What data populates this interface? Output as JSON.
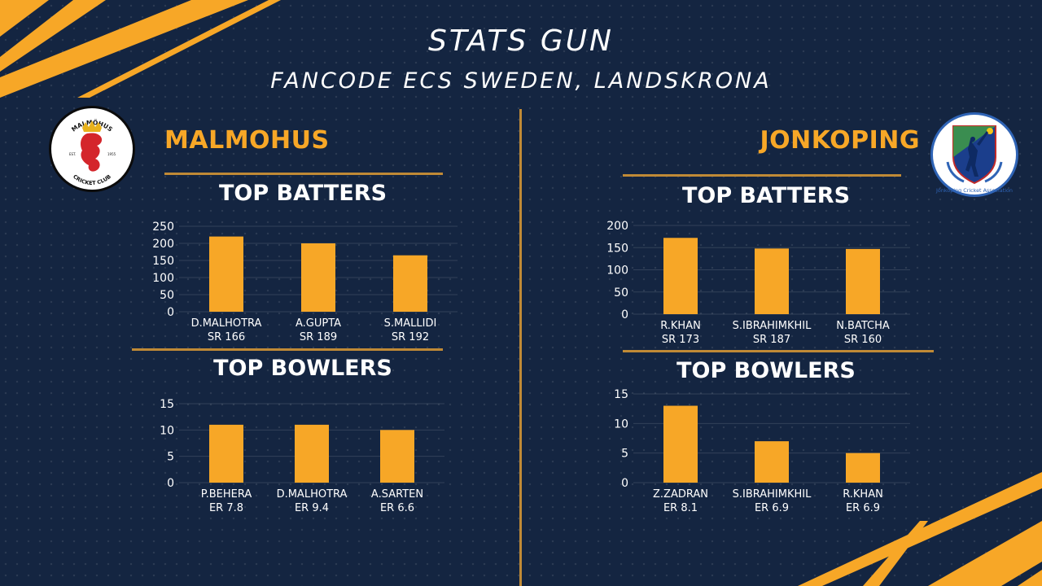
{
  "header": {
    "title": "STATS GUN",
    "subtitle": "FANCODE ECS SWEDEN, LANDSKRONA"
  },
  "colors": {
    "bar": "#f7a727",
    "background": "#142541",
    "accent": "#c08a36",
    "team_name": "#f7a727"
  },
  "teams": {
    "left": {
      "name": "MALMOHUS",
      "logo": {
        "icon": "malmohus-cricket-club-logo",
        "top_text": "MALMÖHUS",
        "bottom_text": "CRICKET CLUB",
        "est": "EST.",
        "year": "1955"
      }
    },
    "right": {
      "name": "JONKOPING",
      "logo": {
        "icon": "jonkoping-cricket-association-logo",
        "text": "Jönköping Cricket Association"
      }
    }
  },
  "sections": {
    "batters": "TOP BATTERS",
    "bowlers": "TOP BOWLERS"
  },
  "chart_data": [
    {
      "type": "bar",
      "team": "MALMOHUS",
      "section": "TOP BATTERS",
      "categories": [
        "D.MALHOTRA",
        "A.GUPTA",
        "S.MALLIDI"
      ],
      "sublabels": [
        "SR 166",
        "SR 189",
        "SR 192"
      ],
      "values": [
        220,
        200,
        165
      ],
      "ylim": [
        0,
        250
      ],
      "yticks": [
        0,
        50,
        100,
        150,
        200,
        250
      ],
      "grid": true
    },
    {
      "type": "bar",
      "team": "MALMOHUS",
      "section": "TOP BOWLERS",
      "categories": [
        "P.BEHERA",
        "D.MALHOTRA",
        "A.SARTEN"
      ],
      "sublabels": [
        "ER 7.8",
        "ER 9.4",
        "ER 6.6"
      ],
      "values": [
        11,
        11,
        10
      ],
      "ylim": [
        0,
        15
      ],
      "yticks": [
        0,
        5,
        10,
        15
      ],
      "grid": true
    },
    {
      "type": "bar",
      "team": "JONKOPING",
      "section": "TOP BATTERS",
      "categories": [
        "R.KHAN",
        "S.IBRAHIMKHIL",
        "N.BATCHA"
      ],
      "sublabels": [
        "SR 173",
        "SR 187",
        "SR 160"
      ],
      "values": [
        172,
        148,
        147
      ],
      "ylim": [
        0,
        200
      ],
      "yticks": [
        0,
        50,
        100,
        150,
        200
      ],
      "grid": true
    },
    {
      "type": "bar",
      "team": "JONKOPING",
      "section": "TOP BOWLERS",
      "categories": [
        "Z.ZADRAN",
        "S.IBRAHIMKHIL",
        "R.KHAN"
      ],
      "sublabels": [
        "ER 8.1",
        "ER 6.9",
        "ER 6.9"
      ],
      "values": [
        13,
        7,
        5
      ],
      "ylim": [
        0,
        15
      ],
      "yticks": [
        0,
        5,
        10,
        15
      ],
      "grid": true
    }
  ]
}
